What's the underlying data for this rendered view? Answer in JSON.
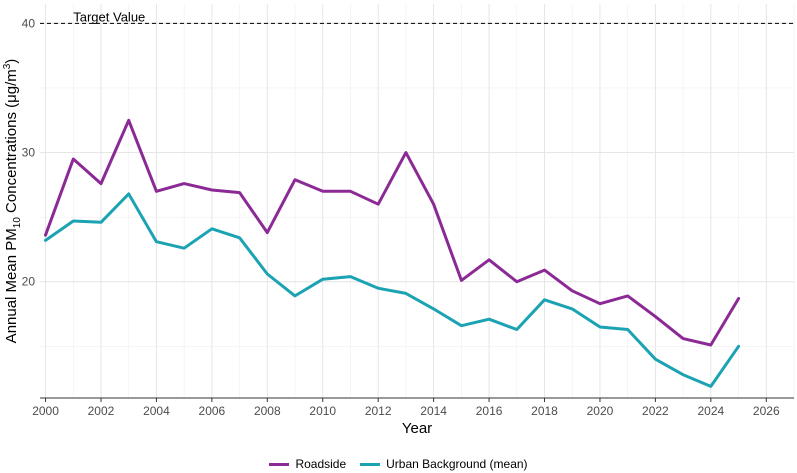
{
  "chart_data": {
    "type": "line",
    "title": "",
    "xlabel": "Year",
    "ylabel": {
      "main": "Annual Mean PM",
      "sub": "10",
      "mid": " Concentrations (μg/m",
      "sup": "3",
      "end": ")"
    },
    "xlim": [
      1999.8,
      2027.0
    ],
    "ylim": [
      11.0,
      41.5
    ],
    "x_ticks": [
      "2000",
      "2002",
      "2004",
      "2006",
      "2008",
      "2010",
      "2012",
      "2014",
      "2016",
      "2018",
      "2020",
      "2022",
      "2024",
      "2026"
    ],
    "y_ticks": [
      "20",
      "30",
      "40"
    ],
    "grid": true,
    "legend_position": "bottom",
    "x": [
      2000,
      2001,
      2002,
      2003,
      2004,
      2005,
      2006,
      2007,
      2008,
      2009,
      2010,
      2011,
      2012,
      2013,
      2014,
      2015,
      2016,
      2017,
      2018,
      2019,
      2020,
      2021,
      2022,
      2023,
      2024,
      2025
    ],
    "series": [
      {
        "name": "Roadside",
        "color": "#8B2A94",
        "values": [
          23.6,
          29.5,
          27.6,
          32.5,
          27.0,
          27.6,
          27.1,
          26.9,
          23.8,
          27.9,
          27.0,
          27.0,
          26.0,
          30.0,
          26.0,
          20.1,
          21.7,
          20.0,
          20.9,
          19.3,
          18.3,
          18.9,
          17.3,
          15.6,
          15.1,
          18.7
        ]
      },
      {
        "name": "Urban Background (mean)",
        "color": "#1BA3B3",
        "values": [
          23.2,
          24.7,
          24.6,
          26.8,
          23.1,
          22.6,
          24.1,
          23.4,
          20.6,
          18.9,
          20.2,
          20.4,
          19.5,
          19.1,
          17.9,
          16.6,
          17.1,
          16.3,
          18.6,
          17.9,
          16.5,
          16.3,
          14.0,
          12.8,
          11.9,
          15.0
        ]
      }
    ],
    "annotations": [
      {
        "text": "Target Value",
        "y": 40,
        "line_style": "dashed"
      }
    ]
  }
}
